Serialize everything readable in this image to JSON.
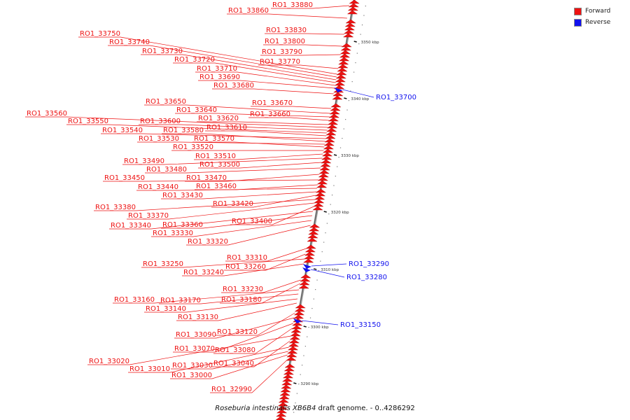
{
  "legend": {
    "forward": {
      "label": "Forward",
      "color": "#ee1111"
    },
    "reverse": {
      "label": "Reverse",
      "color": "#1111ee"
    }
  },
  "caption": {
    "organism": "Roseburia intestinalis XB6B4",
    "rest": " draft genome. - 0..4286292"
  },
  "ticks": [
    {
      "pos_kbp": 3350,
      "label": "3350 kbp"
    },
    {
      "pos_kbp": 3340,
      "label": "3340 kbp"
    },
    {
      "pos_kbp": 3330,
      "label": "3330 kbp"
    },
    {
      "pos_kbp": 3320,
      "label": "3320 kbp"
    },
    {
      "pos_kbp": 3310,
      "label": "3310 kbp"
    },
    {
      "pos_kbp": 3300,
      "label": "3300 kbp"
    },
    {
      "pos_kbp": 3290,
      "label": "3290 kbp"
    }
  ],
  "genes": [
    {
      "name": "RO1_33880",
      "strand": "+"
    },
    {
      "name": "RO1_33860",
      "strand": "+"
    },
    {
      "name": "RO1_33830",
      "strand": "+"
    },
    {
      "name": "RO1_33800",
      "strand": "+"
    },
    {
      "name": "RO1_33790",
      "strand": "+"
    },
    {
      "name": "RO1_33770",
      "strand": "+"
    },
    {
      "name": "RO1_33750",
      "strand": "+"
    },
    {
      "name": "RO1_33740",
      "strand": "+"
    },
    {
      "name": "RO1_33730",
      "strand": "+"
    },
    {
      "name": "RO1_33720",
      "strand": "+"
    },
    {
      "name": "RO1_33710",
      "strand": "+"
    },
    {
      "name": "RO1_33690",
      "strand": "+"
    },
    {
      "name": "RO1_33680",
      "strand": "+"
    },
    {
      "name": "RO1_33700",
      "strand": "-"
    },
    {
      "name": "RO1_33670",
      "strand": "+"
    },
    {
      "name": "RO1_33650",
      "strand": "+"
    },
    {
      "name": "RO1_33640",
      "strand": "+"
    },
    {
      "name": "RO1_33660",
      "strand": "+"
    },
    {
      "name": "RO1_33620",
      "strand": "+"
    },
    {
      "name": "RO1_33560",
      "strand": "+"
    },
    {
      "name": "RO1_33600",
      "strand": "+"
    },
    {
      "name": "RO1_33550",
      "strand": "+"
    },
    {
      "name": "RO1_33610",
      "strand": "+"
    },
    {
      "name": "RO1_33540",
      "strand": "+"
    },
    {
      "name": "RO1_33580",
      "strand": "+"
    },
    {
      "name": "RO1_33530",
      "strand": "+"
    },
    {
      "name": "RO1_33570",
      "strand": "+"
    },
    {
      "name": "RO1_33520",
      "strand": "+"
    },
    {
      "name": "RO1_33510",
      "strand": "+"
    },
    {
      "name": "RO1_33490",
      "strand": "+"
    },
    {
      "name": "RO1_33500",
      "strand": "+"
    },
    {
      "name": "RO1_33480",
      "strand": "+"
    },
    {
      "name": "RO1_33470",
      "strand": "+"
    },
    {
      "name": "RO1_33450",
      "strand": "+"
    },
    {
      "name": "RO1_33460",
      "strand": "+"
    },
    {
      "name": "RO1_33440",
      "strand": "+"
    },
    {
      "name": "RO1_33430",
      "strand": "+"
    },
    {
      "name": "RO1_33420",
      "strand": "+"
    },
    {
      "name": "RO1_33380",
      "strand": "+"
    },
    {
      "name": "RO1_33370",
      "strand": "+"
    },
    {
      "name": "RO1_33400",
      "strand": "+"
    },
    {
      "name": "RO1_33340",
      "strand": "+"
    },
    {
      "name": "RO1_33360",
      "strand": "+"
    },
    {
      "name": "RO1_33330",
      "strand": "+"
    },
    {
      "name": "RO1_33320",
      "strand": "+"
    },
    {
      "name": "RO1_33310",
      "strand": "+"
    },
    {
      "name": "RO1_33260",
      "strand": "+"
    },
    {
      "name": "RO1_33250",
      "strand": "+"
    },
    {
      "name": "RO1_33240",
      "strand": "+"
    },
    {
      "name": "RO1_33290",
      "strand": "-"
    },
    {
      "name": "RO1_33280",
      "strand": "-"
    },
    {
      "name": "RO1_33230",
      "strand": "+"
    },
    {
      "name": "RO1_33180",
      "strand": "+"
    },
    {
      "name": "RO1_33160",
      "strand": "+"
    },
    {
      "name": "RO1_33170",
      "strand": "+"
    },
    {
      "name": "RO1_33140",
      "strand": "+"
    },
    {
      "name": "RO1_33130",
      "strand": "+"
    },
    {
      "name": "RO1_33150",
      "strand": "-"
    },
    {
      "name": "RO1_33120",
      "strand": "+"
    },
    {
      "name": "RO1_33090",
      "strand": "+"
    },
    {
      "name": "RO1_33070",
      "strand": "+"
    },
    {
      "name": "RO1_33080",
      "strand": "+"
    },
    {
      "name": "RO1_33020",
      "strand": "+"
    },
    {
      "name": "RO1_33040",
      "strand": "+"
    },
    {
      "name": "RO1_33010",
      "strand": "+"
    },
    {
      "name": "RO1_33030",
      "strand": "+"
    },
    {
      "name": "RO1_33000",
      "strand": "+"
    },
    {
      "name": "RO1_32990",
      "strand": "+"
    }
  ]
}
